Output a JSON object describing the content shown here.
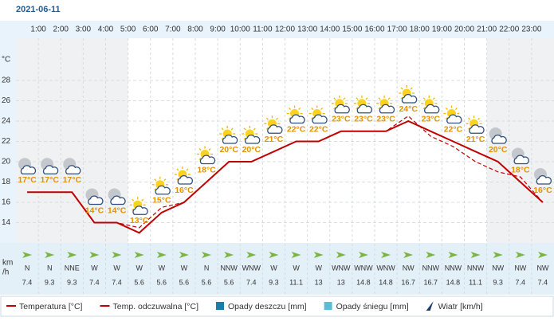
{
  "header": {
    "date": "2021-06-11"
  },
  "chart_data": {
    "type": "line",
    "hour_labels": [
      "1:00",
      "2:00",
      "3:00",
      "4:00",
      "5:00",
      "6:00",
      "7:00",
      "8:00",
      "9:00",
      "10:00",
      "11:00",
      "12:00",
      "13:00",
      "14:00",
      "15:00",
      "16:00",
      "17:00",
      "18:00",
      "19:00",
      "20:00",
      "21:00",
      "22:00",
      "23:00"
    ],
    "y_unit": "°C",
    "ylim": [
      12,
      32
    ],
    "yticks": [
      14,
      16,
      18,
      20,
      22,
      24,
      26,
      28
    ],
    "grid": true,
    "icons": [
      "moon-cloud",
      "moon-cloud",
      "moon-cloud",
      "moon-cloud",
      "moon-cloud",
      "sun-cloud",
      "sun-cloud",
      "sun-cloud",
      "sun-cloud",
      "sun-cloud",
      "sun-cloud",
      "sun-cloud",
      "sun-cloud",
      "sun-cloud",
      "sun-cloud",
      "sun-cloud",
      "sun-cloud",
      "sun-cloud",
      "sun-cloud",
      "sun-cloud",
      "sun-cloud",
      "moon-cloud",
      "moon-cloud",
      "moon-cloud"
    ],
    "series": [
      {
        "name": "Temperatura [°C]",
        "color": "#c00000",
        "values": [
          17,
          17,
          17,
          14,
          14,
          13,
          15,
          16,
          18,
          20,
          20,
          21,
          22,
          22,
          23,
          23,
          23,
          24,
          23,
          22,
          21,
          20,
          18,
          16
        ],
        "value_labels": [
          "17°C",
          "17°C",
          "17°C",
          "14°C",
          "14°C",
          "13°C",
          "15°C",
          "16°C",
          "18°C",
          "20°C",
          "20°C",
          "21°C",
          "22°C",
          "22°C",
          "23°C",
          "23°C",
          "23°C",
          "24°C",
          "23°C",
          "22°C",
          "21°C",
          "20°C",
          "18°C",
          "16°C"
        ]
      },
      {
        "name": "Temp. odczuwalna [°C]",
        "color": "#c00000",
        "dashed": true,
        "values": [
          17,
          17,
          17,
          14,
          14,
          13.5,
          15.5,
          16,
          18,
          20,
          20,
          21,
          22,
          22,
          23,
          23,
          23,
          24.5,
          22.5,
          21.5,
          20,
          19,
          18.5,
          16
        ]
      }
    ],
    "legend_extra": [
      {
        "name": "Opady deszczu [mm]",
        "color": "#1a7fa8"
      },
      {
        "name": "Opady śniegu [mm]",
        "color": "#5bbcd6"
      },
      {
        "name": "Wiatr [km/h]",
        "color": "#1e3c6e"
      }
    ],
    "wind_unit_lines": [
      "km",
      "/h"
    ],
    "wind_directions": [
      "N",
      "N",
      "NNE",
      "W",
      "W",
      "W",
      "W",
      "W",
      "N",
      "NNW",
      "WNW",
      "W",
      "W",
      "W",
      "WNW",
      "WNW",
      "WNW",
      "NW",
      "NNW",
      "NNW",
      "NNW",
      "NW",
      "NW",
      "NW"
    ],
    "wind_speeds": [
      7.4,
      9.3,
      9.3,
      7.4,
      7.4,
      5.6,
      5.6,
      5.6,
      5.6,
      5.6,
      7.4,
      9.3,
      11.1,
      13,
      13,
      14.8,
      14.8,
      16.7,
      16.7,
      14.8,
      11.1,
      9.3,
      7.4,
      7.4
    ]
  }
}
